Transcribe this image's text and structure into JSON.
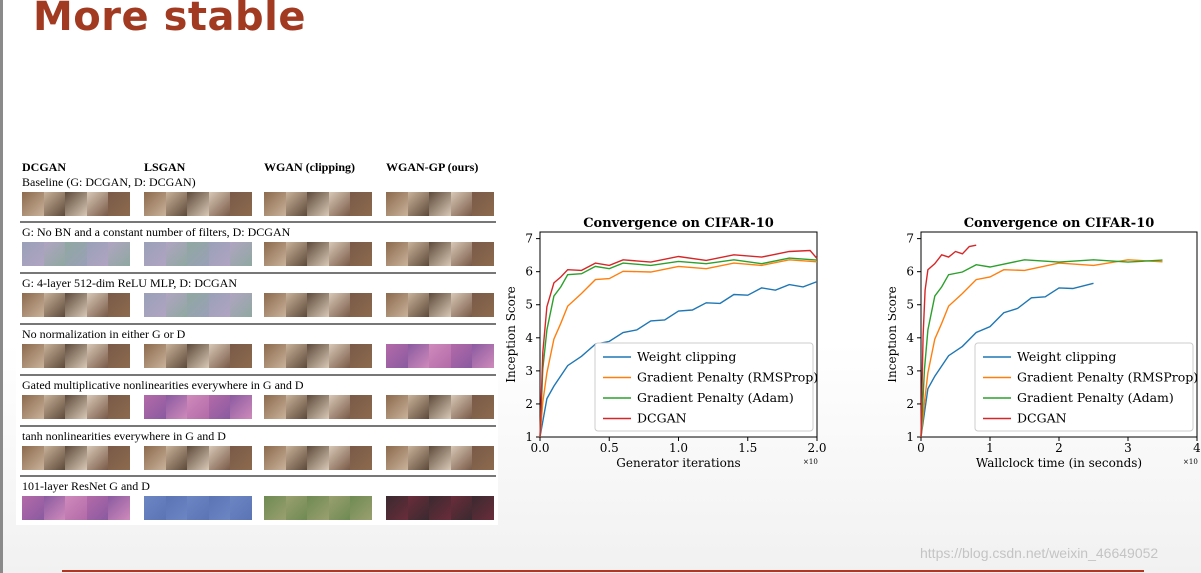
{
  "slide": {
    "title": "More stable",
    "watermark": "https://blog.csdn.net/weixin_46649052"
  },
  "figure_table": {
    "columns": [
      "DCGAN",
      "LSGAN",
      "WGAN (clipping)",
      "WGAN-GP (ours)"
    ],
    "rows": [
      {
        "label": "Baseline (G: DCGAN, D: DCGAN)"
      },
      {
        "label": "G: No BN and a constant number of filters, D: DCGAN"
      },
      {
        "label": "G: 4-layer 512-dim ReLU MLP, D: DCGAN"
      },
      {
        "label": "No normalization in either G or D"
      },
      {
        "label": "Gated multiplicative nonlinearities everywhere in G and D"
      },
      {
        "label": "tanh nonlinearities everywhere in G and D"
      },
      {
        "label": "101-layer ResNet G and D"
      }
    ],
    "thumb_palettes": {
      "photo": [
        "#8c6a4e",
        "#c9b29a",
        "#5e4a3a",
        "#d8c8b6",
        "#7a5a48"
      ],
      "noise": [
        "#9aa0b8",
        "#b0a4c2",
        "#8fa8a0"
      ],
      "purple": [
        "#b36aa8",
        "#8a5aa0",
        "#cf8abb"
      ],
      "blue": [
        "#6c86c4",
        "#5b74b4"
      ],
      "green": [
        "#6e8a52",
        "#9aa070"
      ],
      "dark": [
        "#3a2a30",
        "#6a2c3a"
      ]
    }
  },
  "chart_data": [
    {
      "type": "line",
      "title": "Convergence on CIFAR-10",
      "xlabel": "Generator iterations",
      "ylabel": "Inception Score",
      "x_multiplier": "×10",
      "xlim": [
        0,
        2.0
      ],
      "ylim": [
        1,
        7.2
      ],
      "xticks": [
        "0.0",
        "0.5",
        "1.0",
        "1.5",
        "2.0"
      ],
      "yticks": [
        "1",
        "2",
        "3",
        "4",
        "5",
        "6",
        "7"
      ],
      "legend_position": "lower-right",
      "series": [
        {
          "name": "Weight clipping",
          "color": "#1f77b4",
          "x": [
            0,
            0.05,
            0.1,
            0.2,
            0.3,
            0.4,
            0.5,
            0.6,
            0.7,
            0.8,
            0.9,
            1.0,
            1.1,
            1.2,
            1.3,
            1.4,
            1.5,
            1.6,
            1.7,
            1.8,
            1.9,
            2.0
          ],
          "y": [
            1.0,
            2.1,
            2.6,
            3.1,
            3.5,
            3.75,
            3.95,
            4.1,
            4.3,
            4.45,
            4.6,
            4.75,
            4.9,
            5.0,
            5.1,
            5.25,
            5.35,
            5.45,
            5.5,
            5.55,
            5.6,
            5.7
          ]
        },
        {
          "name": "Gradient Penalty (RMSProp)",
          "color": "#ff7f0e",
          "x": [
            0,
            0.02,
            0.05,
            0.1,
            0.15,
            0.2,
            0.3,
            0.4,
            0.5,
            0.6,
            0.8,
            1.0,
            1.2,
            1.4,
            1.6,
            1.8,
            2.0
          ],
          "y": [
            1.0,
            2.0,
            3.0,
            3.9,
            4.5,
            4.9,
            5.4,
            5.7,
            5.85,
            5.95,
            6.05,
            6.1,
            6.15,
            6.2,
            6.25,
            6.3,
            6.3
          ]
        },
        {
          "name": "Gradient Penalty (Adam)",
          "color": "#2ca02c",
          "x": [
            0,
            0.02,
            0.05,
            0.1,
            0.15,
            0.2,
            0.3,
            0.4,
            0.5,
            0.6,
            0.8,
            1.0,
            1.2,
            1.4,
            1.6,
            1.8,
            2.0
          ],
          "y": [
            1.0,
            3.0,
            4.3,
            5.2,
            5.6,
            5.85,
            6.0,
            6.1,
            6.15,
            6.2,
            6.25,
            6.25,
            6.3,
            6.3,
            6.3,
            6.35,
            6.35
          ]
        },
        {
          "name": "DCGAN",
          "color": "#d62728",
          "x": [
            0,
            0.02,
            0.05,
            0.1,
            0.15,
            0.2,
            0.3,
            0.4,
            0.5,
            0.6,
            0.8,
            1.0,
            1.2,
            1.4,
            1.6,
            1.8,
            1.95,
            2.0
          ],
          "y": [
            1.0,
            3.5,
            5.0,
            5.6,
            5.9,
            6.0,
            6.1,
            6.2,
            6.25,
            6.3,
            6.35,
            6.4,
            6.4,
            6.45,
            6.5,
            6.55,
            6.7,
            6.4
          ]
        }
      ]
    },
    {
      "type": "line",
      "title": "Convergence on CIFAR-10",
      "xlabel": "Wallclock time (in seconds)",
      "ylabel": "Inception Score",
      "x_multiplier": "×10",
      "xlim": [
        0,
        4
      ],
      "ylim": [
        1,
        7.2
      ],
      "xticks": [
        "0",
        "1",
        "2",
        "3",
        "4"
      ],
      "yticks": [
        "1",
        "2",
        "3",
        "4",
        "5",
        "6",
        "7"
      ],
      "legend_position": "lower-right",
      "series": [
        {
          "name": "Weight clipping",
          "color": "#1f77b4",
          "x": [
            0,
            0.1,
            0.2,
            0.4,
            0.6,
            0.8,
            1.0,
            1.2,
            1.4,
            1.6,
            1.8,
            2.0,
            2.2,
            2.5
          ],
          "y": [
            1.0,
            2.4,
            2.9,
            3.4,
            3.8,
            4.1,
            4.4,
            4.7,
            4.95,
            5.15,
            5.3,
            5.45,
            5.55,
            5.65
          ]
        },
        {
          "name": "Gradient Penalty (RMSProp)",
          "color": "#ff7f0e",
          "x": [
            0,
            0.05,
            0.1,
            0.2,
            0.3,
            0.4,
            0.6,
            0.8,
            1.0,
            1.2,
            1.5,
            2.0,
            2.5,
            3.0,
            3.5
          ],
          "y": [
            1.0,
            2.0,
            3.0,
            3.9,
            4.5,
            4.9,
            5.4,
            5.7,
            5.9,
            6.0,
            6.1,
            6.2,
            6.25,
            6.3,
            6.3
          ]
        },
        {
          "name": "Gradient Penalty (Adam)",
          "color": "#2ca02c",
          "x": [
            0,
            0.05,
            0.1,
            0.2,
            0.3,
            0.4,
            0.6,
            0.8,
            1.0,
            1.5,
            2.0,
            2.5,
            3.0,
            3.5
          ],
          "y": [
            1.0,
            3.0,
            4.3,
            5.2,
            5.6,
            5.85,
            6.05,
            6.15,
            6.2,
            6.3,
            6.35,
            6.3,
            6.35,
            6.35
          ]
        },
        {
          "name": "DCGAN",
          "color": "#d62728",
          "x": [
            0,
            0.03,
            0.06,
            0.1,
            0.2,
            0.3,
            0.4,
            0.5,
            0.6,
            0.7,
            0.8
          ],
          "y": [
            1.0,
            4.0,
            5.5,
            6.0,
            6.3,
            6.45,
            6.5,
            6.55,
            6.6,
            6.7,
            6.8
          ]
        }
      ]
    }
  ]
}
